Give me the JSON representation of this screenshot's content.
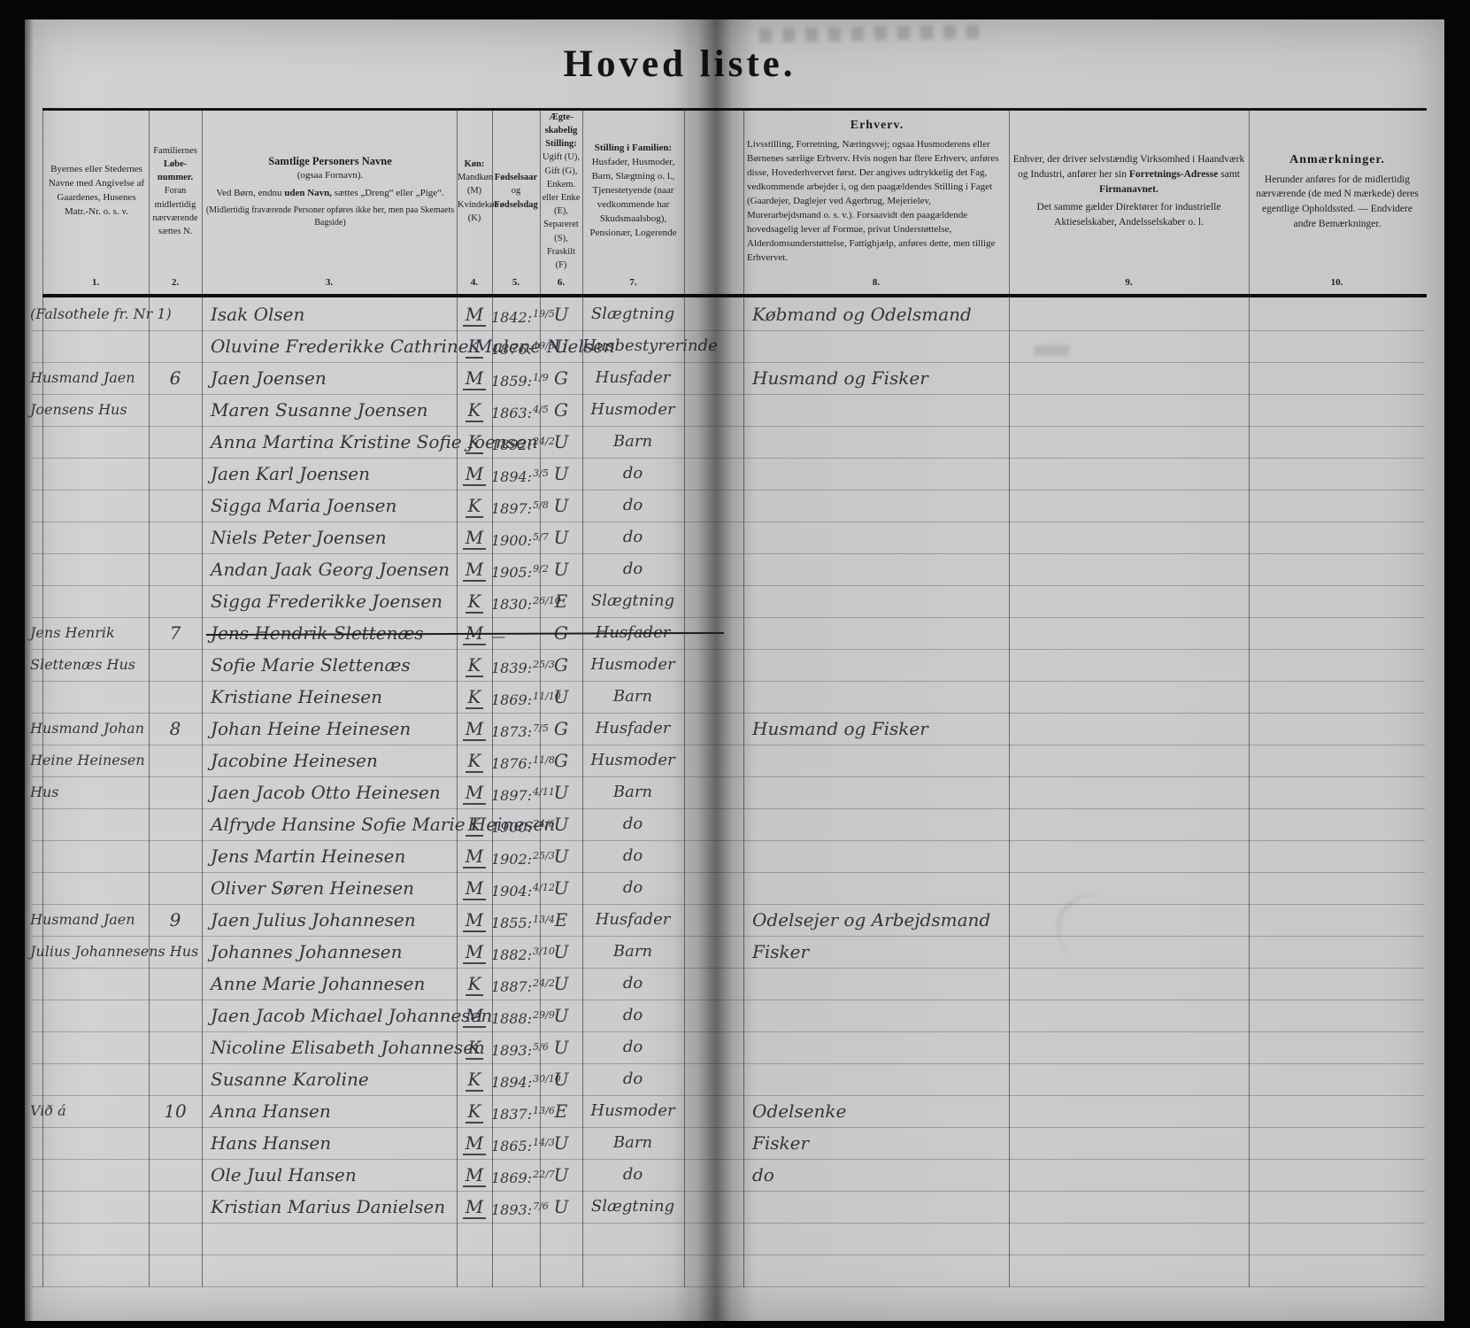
{
  "page": {
    "title": "Hoved liste."
  },
  "columns": [
    {
      "num": "1.",
      "text": "Byernes eller Stedernes Navne med Angivelse af Gaardenes, Husenes Matr.-Nr. o. s. v."
    },
    {
      "num": "2.",
      "line1": "Familiernes",
      "bold": "Løbe-nummer.",
      "line2": "Foran midlertidig nærværende sættes N."
    },
    {
      "num": "3.",
      "title": "Samtlige Personers Navne",
      "sub": "(ogsaa Fornavn).",
      "l2a": "Ved Børn, endnu",
      "l2b": "uden Navn,",
      "l2c": "sættes „Dreng“ eller „Pige“.",
      "note": "(Midlertidig fraværende Personer opføres ikke her, men paa Skemaets Bagside)"
    },
    {
      "num": "4.",
      "title": "Køn:",
      "text": "Mandkøn (M) Kvindekøn (K)"
    },
    {
      "num": "5.",
      "bold1": "Fødselsaar",
      "mid": "og",
      "bold2": "Fødselsdag"
    },
    {
      "num": "6.",
      "title": "Ægte- skabelig Stilling:",
      "text": "Ugift (U), Gift (G), Enkem. eller Enke (E), Separeret (S), Fraskilt (F)"
    },
    {
      "num": "7.",
      "title": "Stilling i Familien:",
      "text": "Husfader, Husmoder, Barn, Slægtning o. l., Tjenestetyende (naar vedkommende har Skudsmaalsbog), Pensionær, Logerende"
    },
    {
      "num": "8.",
      "title": "Erhverv.",
      "text": "Livsstilling, Forretning, Næringsvej; ogsaa Husmoderens eller Børnenes særlige Erhverv. Hvis nogen har flere Erhverv, anføres disse, Hovederhvervet først. Der angives udtrykkelig det Fag, vedkommende arbejder i, og den paagældendes Stilling i Faget (Gaardejer, Daglejer ved Agerbrug, Mejerielev, Murerarbejdsmand o. s. v.). Forsaavidt den paagældende hovedsagelig lever af Formue, privat Understøttelse, Alderdomsunderstøttelse, Fattighjælp, anføres dette, men tillige Erhvervet."
    },
    {
      "num": "9.",
      "pre": "Enhver, der driver selvstændig Virksomhed i Haandværk og Industri, anfører her sin",
      "bold1": "Forretnings-Adresse",
      "mid": "samt",
      "bold2": "Firmanavnet.",
      "post": "Det samme gælder Direktører for industrielle Aktieselskaber, Andelsselskaber o. l."
    },
    {
      "num": "10.",
      "title": "Anmærkninger.",
      "text": "Herunder anføres for de midlertidig nærværende (de med N mærkede) deres egentlige Opholdssted. — Endvidere andre Bemærkninger."
    }
  ],
  "rows": [
    {
      "place": "(Falsothele fr. Nr 1)",
      "num": "",
      "name": "Isak Olsen",
      "sex": "M",
      "year": "1842:",
      "day": "19/5",
      "marital": "U",
      "family": "Slægtning",
      "occupation": "Købmand og Odelsmand"
    },
    {
      "place": "",
      "num": "",
      "name": "Oluvine Frederikke Cathrine Malene Nielsen",
      "sex": "K",
      "year": "1876:",
      "day": "19/8",
      "marital": "U",
      "family": "Husbestyrerinde",
      "occupation": ""
    },
    {
      "place": "Husmand Jaen",
      "num": "6",
      "name": "Jaen Joensen",
      "sex": "M",
      "year": "1859:",
      "day": "1/9",
      "marital": "G",
      "family": "Husfader",
      "occupation": "Husmand og Fisker"
    },
    {
      "place": "Joensens Hus",
      "num": "",
      "name": "Maren Susanne Joensen",
      "sex": "K",
      "year": "1863:",
      "day": "4/5",
      "marital": "G",
      "family": "Husmoder",
      "occupation": ""
    },
    {
      "place": "",
      "num": "",
      "name": "Anna Martina Kristine Sofie Joensen",
      "sex": "K",
      "year": "1892:",
      "day": "24/2",
      "marital": "U",
      "family": "Barn",
      "occupation": ""
    },
    {
      "place": "",
      "num": "",
      "name": "Jaen Karl Joensen",
      "sex": "M",
      "year": "1894:",
      "day": "3/5",
      "marital": "U",
      "family": "do",
      "occupation": ""
    },
    {
      "place": "",
      "num": "",
      "name": "Sigga Maria Joensen",
      "sex": "K",
      "year": "1897:",
      "day": "5/8",
      "marital": "U",
      "family": "do",
      "occupation": ""
    },
    {
      "place": "",
      "num": "",
      "name": "Niels Peter Joensen",
      "sex": "M",
      "year": "1900:",
      "day": "5/7",
      "marital": "U",
      "family": "do",
      "occupation": ""
    },
    {
      "place": "",
      "num": "",
      "name": "Andan Jaak Georg Joensen",
      "sex": "M",
      "year": "1905:",
      "day": "9/2",
      "marital": "U",
      "family": "do",
      "occupation": ""
    },
    {
      "place": "",
      "num": "",
      "name": "Sigga Frederikke Joensen",
      "sex": "K",
      "year": "1830:",
      "day": "26/10",
      "marital": "E",
      "family": "Slægtning",
      "occupation": ""
    },
    {
      "place": "Jens Henrik",
      "num": "7",
      "name": "Jens Hendrik Slettenæs",
      "sex": "M",
      "year": "—",
      "day": "",
      "marital": "G",
      "family": "Husfader",
      "occupation": "",
      "struck": true
    },
    {
      "place": "Slettenæs Hus",
      "num": "",
      "name": "Sofie Marie Slettenæs",
      "sex": "K",
      "year": "1839:",
      "day": "25/3",
      "marital": "G",
      "family": "Husmoder",
      "occupation": ""
    },
    {
      "place": "",
      "num": "",
      "name": "Kristiane Heinesen",
      "sex": "K",
      "year": "1869:",
      "day": "11/10",
      "marital": "U",
      "family": "Barn",
      "occupation": ""
    },
    {
      "place": "Husmand Johan",
      "num": "8",
      "name": "Johan Heine Heinesen",
      "sex": "M",
      "year": "1873:",
      "day": "7/5",
      "marital": "G",
      "family": "Husfader",
      "occupation": "Husmand og Fisker"
    },
    {
      "place": "Heine Heinesen",
      "num": "",
      "name": "Jacobine Heinesen",
      "sex": "K",
      "year": "1876:",
      "day": "11/8",
      "marital": "G",
      "family": "Husmoder",
      "occupation": ""
    },
    {
      "place": "Hus",
      "num": "",
      "name": "Jaen Jacob Otto Heinesen",
      "sex": "M",
      "year": "1897:",
      "day": "4/11",
      "marital": "U",
      "family": "Barn",
      "occupation": ""
    },
    {
      "place": "",
      "num": "",
      "name": "Alfryde Hansine Sofie Marie Heinesen",
      "sex": "K",
      "year": "1900:",
      "day": "24/6",
      "marital": "U",
      "family": "do",
      "occupation": ""
    },
    {
      "place": "",
      "num": "",
      "name": "Jens Martin Heinesen",
      "sex": "M",
      "year": "1902:",
      "day": "25/3",
      "marital": "U",
      "family": "do",
      "occupation": ""
    },
    {
      "place": "",
      "num": "",
      "name": "Oliver Søren Heinesen",
      "sex": "M",
      "year": "1904:",
      "day": "4/12",
      "marital": "U",
      "family": "do",
      "occupation": ""
    },
    {
      "place": "Husmand Jaen",
      "num": "9",
      "name": "Jaen Julius Johannesen",
      "sex": "M",
      "year": "1855:",
      "day": "13/4",
      "marital": "E",
      "family": "Husfader",
      "occupation": "Odelsejer og Arbejdsmand"
    },
    {
      "place": "Julius Johannesens Hus",
      "num": "",
      "name": "Johannes Johannesen",
      "sex": "M",
      "year": "1882:",
      "day": "3/10",
      "marital": "U",
      "family": "Barn",
      "occupation": "Fisker"
    },
    {
      "place": "",
      "num": "",
      "name": "Anne Marie Johannesen",
      "sex": "K",
      "year": "1887:",
      "day": "24/2",
      "marital": "U",
      "family": "do",
      "occupation": ""
    },
    {
      "place": "",
      "num": "",
      "name": "Jaen Jacob Michael Johannesen",
      "sex": "M",
      "year": "1888:",
      "day": "29/9",
      "marital": "U",
      "family": "do",
      "occupation": ""
    },
    {
      "place": "",
      "num": "",
      "name": "Nicoline Elisabeth Johannesen",
      "sex": "K",
      "year": "1893:",
      "day": "5/6",
      "marital": "U",
      "family": "do",
      "occupation": ""
    },
    {
      "place": "",
      "num": "",
      "name": "Susanne Karoline",
      "sex": "K",
      "year": "1894:",
      "day": "30/10",
      "marital": "U",
      "family": "do",
      "occupation": ""
    },
    {
      "place": "Við á",
      "num": "10",
      "name": "Anna Hansen",
      "sex": "K",
      "year": "1837:",
      "day": "13/6",
      "marital": "E",
      "family": "Husmoder",
      "occupation": "Odelsenke"
    },
    {
      "place": "",
      "num": "",
      "name": "Hans Hansen",
      "sex": "M",
      "year": "1865:",
      "day": "14/3",
      "marital": "U",
      "family": "Barn",
      "occupation": "Fisker"
    },
    {
      "place": "",
      "num": "",
      "name": "Ole Juul Hansen",
      "sex": "M",
      "year": "1869:",
      "day": "22/7",
      "marital": "U",
      "family": "do",
      "occupation": "do"
    },
    {
      "place": "",
      "num": "",
      "name": "Kristian Marius Danielsen",
      "sex": "M",
      "year": "1893:",
      "day": "7/6",
      "marital": "U",
      "family": "Slægtning",
      "occupation": ""
    },
    {
      "place": "",
      "num": "",
      "name": "",
      "sex": "",
      "year": "",
      "day": "",
      "marital": "",
      "family": "",
      "occupation": ""
    },
    {
      "place": "",
      "num": "",
      "name": "",
      "sex": "",
      "year": "",
      "day": "",
      "marital": "",
      "family": "",
      "occupation": ""
    }
  ]
}
